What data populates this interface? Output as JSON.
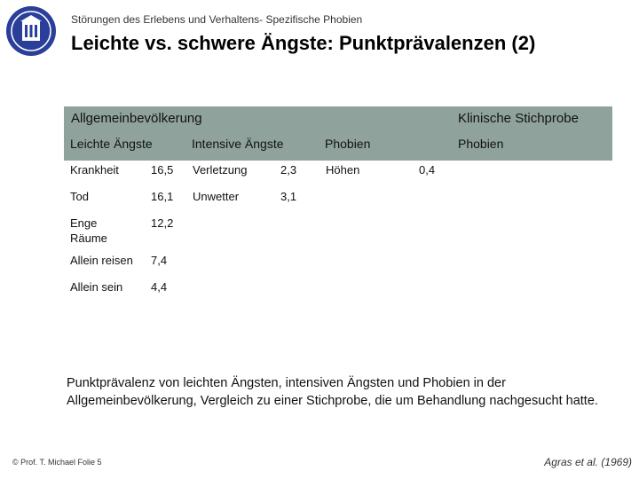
{
  "header": {
    "subtitle": "Störungen des Erlebens und Verhaltens- Spezifische Phobien",
    "title": "Leichte vs. schwere Ängste: Punktprävalenzen (2)"
  },
  "table": {
    "group_left": "Allgemeinbevölkerung",
    "group_right": "Klinische Stichprobe",
    "col_headers": [
      "Leichte Ängste",
      "Intensive Ängste",
      "Phobien",
      "Phobien"
    ],
    "rows": [
      {
        "mild_label": "Krankheit",
        "mild_value": "16,5",
        "intense_label": "Verletzung",
        "intense_value": "2,3",
        "phobia_label": "Höhen",
        "phobia_value": "0,4"
      },
      {
        "mild_label": "Tod",
        "mild_value": "16,1",
        "intense_label": "Unwetter",
        "intense_value": "3,1"
      },
      {
        "mild_label": "Enge Räume",
        "mild_value": "12,2"
      },
      {
        "mild_label": "Allein reisen",
        "mild_value": "7,4"
      },
      {
        "mild_label": "Allein sein",
        "mild_value": "4,4"
      }
    ]
  },
  "caption": "Punktprävalenz von leichten Ängsten, intensiven Ängsten und Phobien in der Allgemeinbevölkerung, Vergleich zu einer Stichprobe, die um Behandlung nachgesucht hatte.",
  "footer": {
    "left": "© Prof. T. Michael Folie 5",
    "right": "Agras et al. (1969)"
  },
  "colors": {
    "header_band": "#8fa39c",
    "logo_blue": "#2a3f9a"
  },
  "icons": {
    "logo": "university-seal-icon"
  }
}
